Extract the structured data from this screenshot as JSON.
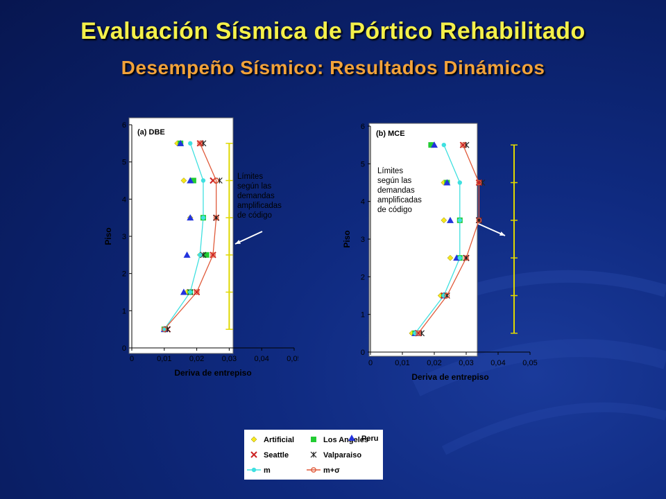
{
  "slide": {
    "title": "Evaluación Sísmica de Pórtico Rehabilitado",
    "subtitle": "Desempeño Sísmico: Resultados Dinámicos"
  },
  "colors": {
    "title": "#f4f04a",
    "subtitle": "#f2a23a",
    "limit_line": "#e0d800",
    "m_line": "#3fe0e0",
    "msigma_line": "#e05a3a"
  },
  "legend": {
    "items": [
      {
        "label": "Artificial",
        "marker": "diamond",
        "color": "#f6e81c"
      },
      {
        "label": "Los Angeles",
        "marker": "square",
        "color": "#22cc33"
      },
      {
        "label": "Peru",
        "marker": "triangle",
        "color": "#2233dd"
      },
      {
        "label": "Seattle",
        "marker": "x",
        "color": "#cc2222"
      },
      {
        "label": "Valparaiso",
        "marker": "star",
        "color": "#222222"
      },
      {
        "label": "m",
        "marker": "line-circle",
        "color": "#3fe0e0"
      },
      {
        "label": "m+σ",
        "marker": "line-circle-open",
        "color": "#e05a3a"
      }
    ]
  },
  "chart_data": [
    {
      "type": "scatter",
      "panel_label": "(a) DBE",
      "xlabel": "Deriva de entrepiso",
      "ylabel": "Piso",
      "xlim": [
        0,
        0.05
      ],
      "ylim": [
        0,
        6
      ],
      "xticks": [
        "0",
        "0,01",
        "0,02",
        "0,03",
        "0,04",
        "0,05"
      ],
      "yticks": [
        "0",
        "1",
        "2",
        "3",
        "4",
        "5",
        "6"
      ],
      "annotation": "Límites\nsegún las\ndemandas\namplificadas\nde código",
      "limit_x": 0.03,
      "series": [
        {
          "name": "Artificial",
          "x": [
            0.01,
            0.017,
            0.021,
            0.018,
            0.016,
            0.014
          ],
          "y": [
            0.5,
            1.5,
            2.5,
            3.5,
            4.5,
            5.5
          ]
        },
        {
          "name": "Los Angeles",
          "x": [
            0.01,
            0.018,
            0.023,
            0.022,
            0.019,
            0.015
          ],
          "y": [
            0.5,
            1.5,
            2.5,
            3.5,
            4.5,
            5.5
          ]
        },
        {
          "name": "Peru",
          "x": [
            0.01,
            0.016,
            0.017,
            0.018,
            0.018,
            0.015
          ],
          "y": [
            0.5,
            1.5,
            2.5,
            3.5,
            4.5,
            5.5
          ]
        },
        {
          "name": "Seattle",
          "x": [
            0.011,
            0.02,
            0.025,
            0.026,
            0.025,
            0.021
          ],
          "y": [
            0.5,
            1.5,
            2.5,
            3.5,
            4.5,
            5.5
          ]
        },
        {
          "name": "Valparaiso",
          "x": [
            0.011,
            0.018,
            0.022,
            0.026,
            0.027,
            0.022
          ],
          "y": [
            0.5,
            1.5,
            2.5,
            3.5,
            4.5,
            5.5
          ]
        },
        {
          "name": "m",
          "x": [
            0.01,
            0.018,
            0.021,
            0.022,
            0.022,
            0.018
          ],
          "y": [
            0.5,
            1.5,
            2.5,
            3.5,
            4.5,
            5.5
          ]
        },
        {
          "name": "m+σ",
          "x": [
            0.01,
            0.02,
            0.025,
            0.026,
            0.026,
            0.021
          ],
          "y": [
            0.5,
            1.5,
            2.5,
            3.5,
            4.5,
            5.5
          ]
        }
      ]
    },
    {
      "type": "scatter",
      "panel_label": "(b) MCE",
      "xlabel": "Deriva de entrepiso",
      "ylabel": "Piso",
      "xlim": [
        0,
        0.05
      ],
      "ylim": [
        0,
        6
      ],
      "xticks": [
        "0",
        "0,01",
        "0,02",
        "0,03",
        "0,04",
        "0,05"
      ],
      "yticks": [
        "0",
        "1",
        "2",
        "3",
        "4",
        "5",
        "6"
      ],
      "annotation": "Límites\nsegún las\ndemandas\namplificadas\nde código",
      "limit_x": 0.045,
      "series": [
        {
          "name": "Artificial",
          "x": [
            0.013,
            0.022,
            0.025,
            0.023,
            0.023,
            0.019
          ],
          "y": [
            0.5,
            1.5,
            2.5,
            3.5,
            4.5,
            5.5
          ]
        },
        {
          "name": "Los Angeles",
          "x": [
            0.014,
            0.023,
            0.028,
            0.028,
            0.024,
            0.019
          ],
          "y": [
            0.5,
            1.5,
            2.5,
            3.5,
            4.5,
            5.5
          ]
        },
        {
          "name": "Peru",
          "x": [
            0.014,
            0.023,
            0.027,
            0.025,
            0.024,
            0.02
          ],
          "y": [
            0.5,
            1.5,
            2.5,
            3.5,
            4.5,
            5.5
          ]
        },
        {
          "name": "Seattle",
          "x": [
            0.015,
            0.023,
            0.03,
            0.034,
            0.034,
            0.029
          ],
          "y": [
            0.5,
            1.5,
            2.5,
            3.5,
            4.5,
            5.5
          ]
        },
        {
          "name": "Valparaiso",
          "x": [
            0.016,
            0.024,
            0.03,
            0.034,
            0.035,
            0.03
          ],
          "y": [
            0.5,
            1.5,
            2.5,
            3.5,
            4.5,
            5.5
          ]
        },
        {
          "name": "m",
          "x": [
            0.014,
            0.023,
            0.028,
            0.028,
            0.028,
            0.023
          ],
          "y": [
            0.5,
            1.5,
            2.5,
            3.5,
            4.5,
            5.5
          ]
        },
        {
          "name": "m+σ",
          "x": [
            0.015,
            0.024,
            0.03,
            0.034,
            0.034,
            0.029
          ],
          "y": [
            0.5,
            1.5,
            2.5,
            3.5,
            4.5,
            5.5
          ]
        }
      ]
    }
  ]
}
